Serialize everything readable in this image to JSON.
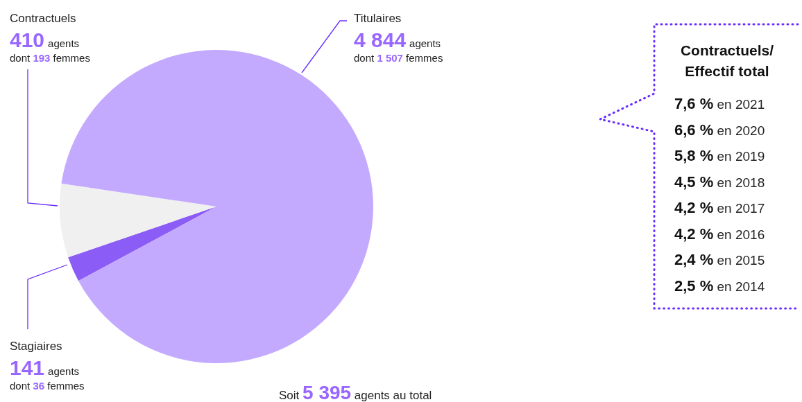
{
  "chart_data": [
    {
      "type": "pie",
      "categories": [
        "Stagiaires",
        "Contractuels",
        "Titulaires"
      ],
      "values": [
        141,
        410,
        4844
      ],
      "colors": [
        "#8b5cf6",
        "#f0f0f0",
        "#c4aafe"
      ],
      "value_labels": [
        "141",
        "410",
        "4 844"
      ],
      "annotations": [
        {
          "text": "agents",
          "x": "Stagiaires"
        },
        {
          "text": "dont 36 femmes",
          "x": "Stagiaires"
        },
        {
          "text": "agents",
          "x": "Contractuels"
        },
        {
          "text": "dont 193 femmes",
          "x": "Contractuels"
        },
        {
          "text": "agents",
          "x": "Titulaires"
        },
        {
          "text": "dont 1 507 femmes",
          "x": "Titulaires"
        },
        "Soit 5 395 agents au total"
      ]
    },
    {
      "type": "other",
      "title": "Contractuels/\nEffectif total",
      "annotations": [
        "7,6 % en 2021",
        "6,6 % en 2020",
        "5,8 % en 2019",
        "4,5 % en 2018",
        "4,2 % en 2017",
        "4,2 % en 2016",
        "2,4 % en 2015",
        "2,5 % en 2014"
      ]
    }
  ]
}
